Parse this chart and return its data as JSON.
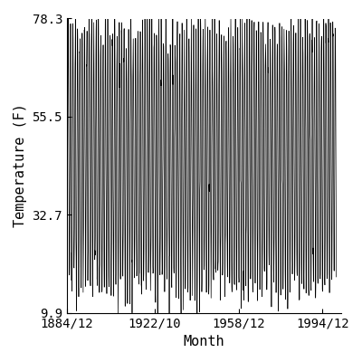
{
  "title": "",
  "xlabel": "Month",
  "ylabel": "Temperature (F)",
  "xlim_start_year": 1884,
  "xlim_start_month": 12,
  "xlim_end_year": 2002,
  "xlim_end_month": 12,
  "ylim": [
    9.9,
    78.3
  ],
  "yticks": [
    9.9,
    32.7,
    55.5,
    78.3
  ],
  "xtick_labels": [
    "1884/12",
    "1922/10",
    "1958/12",
    "1994/12"
  ],
  "xtick_years": [
    1884,
    1922,
    1958,
    1994
  ],
  "xtick_months": [
    12,
    10,
    12,
    12
  ],
  "data_start_year": 1885,
  "data_start_month": 1,
  "data_end_year": 2000,
  "data_end_month": 12,
  "mean_temp": 46.0,
  "amplitude": 30.0,
  "noise_std": 3.5,
  "line_color": "#000000",
  "line_width": 0.5,
  "background_color": "#ffffff",
  "font_family": "monospace",
  "tick_font_size": 10,
  "label_font_size": 11
}
